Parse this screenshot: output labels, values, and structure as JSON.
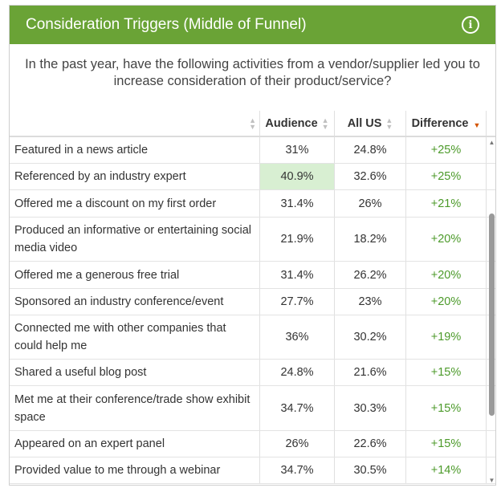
{
  "header": {
    "title": "Consideration Triggers (Middle of Funnel)",
    "info_icon": "info-icon"
  },
  "question": "In the past year, have the following activities from a vendor/supplier led you to increase consideration of their product/service?",
  "table": {
    "columns": {
      "activity": "",
      "audience": "Audience",
      "all_us": "All US",
      "difference": "Difference"
    },
    "rows": [
      {
        "activity": "Featured in a news article",
        "audience": "31%",
        "all_us": "24.8%",
        "difference": "+25%"
      },
      {
        "activity": "Referenced by an industry expert",
        "audience": "40.9%",
        "all_us": "32.6%",
        "difference": "+25%"
      },
      {
        "activity": "Offered me a discount on my first order",
        "audience": "31.4%",
        "all_us": "26%",
        "difference": "+21%"
      },
      {
        "activity": "Produced an informative or entertaining social media video",
        "audience": "21.9%",
        "all_us": "18.2%",
        "difference": "+20%"
      },
      {
        "activity": "Offered me a generous free trial",
        "audience": "31.4%",
        "all_us": "26.2%",
        "difference": "+20%"
      },
      {
        "activity": "Sponsored an industry conference/event",
        "audience": "27.7%",
        "all_us": "23%",
        "difference": "+20%"
      },
      {
        "activity": "Connected me with other companies that could help me",
        "audience": "36%",
        "all_us": "30.2%",
        "difference": "+19%"
      },
      {
        "activity": "Shared a useful blog post",
        "audience": "24.8%",
        "all_us": "21.6%",
        "difference": "+15%"
      },
      {
        "activity": "Met me at their conference/trade show exhibit space",
        "audience": "34.7%",
        "all_us": "30.3%",
        "difference": "+15%"
      },
      {
        "activity": "Appeared on an expert panel",
        "audience": "26%",
        "all_us": "22.6%",
        "difference": "+15%"
      },
      {
        "activity": "Provided value to me through a webinar",
        "audience": "34.7%",
        "all_us": "30.5%",
        "difference": "+14%"
      }
    ]
  },
  "colors": {
    "header_bg": "#6aa336",
    "positive": "#4c9a2a",
    "highlight": "#d8efd2",
    "sort_active": "#d35400"
  }
}
